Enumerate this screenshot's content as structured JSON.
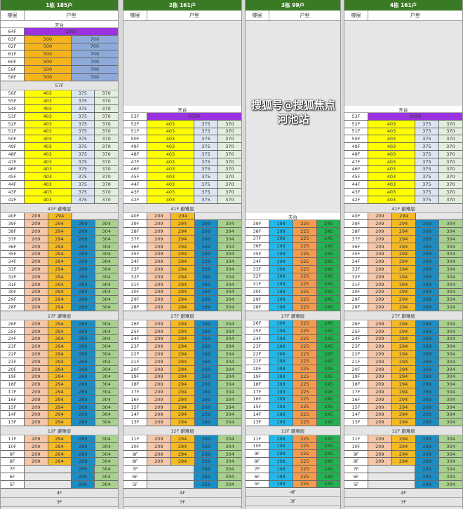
{
  "palette": {
    "purple": "#9a32e0",
    "orange500": "#f5b41c",
    "blue700": "#8eaadb",
    "yellow403": "#ffff00",
    "lightblue375": "#dce6f2",
    "lightgreen370": "#e3eedc",
    "peach209": "#f5c6a8",
    "gold294": "#f5b922",
    "blue269": "#1b8dc5",
    "green304": "#a9d18e",
    "cyan198": "#21b9ec",
    "orange225": "#f39c4d",
    "green245": "#22b24f",
    "empty": "#e6e6e6"
  },
  "panels": [
    {
      "title": "1栋 185户",
      "header_floor": "楼层",
      "header_type": "户型",
      "blank_top": false,
      "blocks": [
        {
          "sep": "天台",
          "roof": true
        },
        {
          "floors": [
            "64F"
          ],
          "cells": [
            {
              "v": "1050",
              "c": "purple",
              "span": 4
            }
          ]
        },
        {
          "floors": [
            "63F",
            "62F",
            "61F",
            "60F",
            "59F",
            "58F"
          ],
          "cells": [
            {
              "v": "500",
              "c": "orange500",
              "span": 2
            },
            {
              "v": "700",
              "c": "blue700",
              "span": 2
            }
          ]
        },
        {
          "sep": "57F"
        },
        {
          "floors": [
            "56F",
            "55F",
            "54F",
            "53F",
            "52F",
            "51F",
            "50F",
            "49F",
            "48F",
            "47F",
            "46F",
            "45F",
            "44F",
            "43F",
            "42F"
          ],
          "cells": [
            {
              "v": "403",
              "c": "yellow403",
              "span": 2
            },
            {
              "v": "375",
              "c": "lightblue375"
            },
            {
              "v": "370",
              "c": "lightgreen370"
            }
          ]
        },
        {
          "sep": "41F 避难层"
        },
        {
          "floors": [
            "40F"
          ],
          "cells": [
            {
              "v": "209",
              "c": "peach209"
            },
            {
              "v": "294",
              "c": "gold294"
            },
            {
              "v": "",
              "c": "empty",
              "span": 2
            }
          ]
        },
        {
          "floors": [
            "39F",
            "38F",
            "37F",
            "36F",
            "35F",
            "34F",
            "33F",
            "32F",
            "31F",
            "30F",
            "29F",
            "28F"
          ],
          "cells": [
            {
              "v": "209",
              "c": "peach209"
            },
            {
              "v": "294",
              "c": "gold294"
            },
            {
              "v": "269",
              "c": "blue269"
            },
            {
              "v": "304",
              "c": "green304"
            }
          ]
        },
        {
          "sep": "27F 避难层"
        },
        {
          "floors": [
            "26F",
            "25F",
            "24F",
            "23F",
            "22F",
            "21F",
            "20F",
            "19F",
            "18F",
            "17F",
            "16F",
            "15F",
            "14F",
            "13F"
          ],
          "cells": [
            {
              "v": "209",
              "c": "peach209"
            },
            {
              "v": "294",
              "c": "gold294"
            },
            {
              "v": "269",
              "c": "blue269"
            },
            {
              "v": "304",
              "c": "green304"
            }
          ]
        },
        {
          "sep": "12F 避难层"
        },
        {
          "floors": [
            "11F",
            "10F",
            "9F",
            "8F"
          ],
          "cells": [
            {
              "v": "209",
              "c": "peach209"
            },
            {
              "v": "294",
              "c": "gold294"
            },
            {
              "v": "269",
              "c": "blue269"
            },
            {
              "v": "304",
              "c": "green304"
            }
          ]
        },
        {
          "floors": [
            "7F",
            "6F",
            "5F"
          ],
          "cells": [
            {
              "v": "",
              "c": "empty",
              "span": 2
            },
            {
              "v": "269",
              "c": "blue269"
            },
            {
              "v": "304",
              "c": "green304"
            }
          ]
        },
        {
          "sep": "4F"
        },
        {
          "sep": "3F"
        }
      ]
    },
    {
      "title": "2栋 161户",
      "header_floor": "楼层",
      "header_type": "户型",
      "blank_top": true,
      "blocks": [
        {
          "sep": "天台",
          "roof": true
        },
        {
          "floors": [
            "53F"
          ],
          "cells": [
            {
              "v": "1050",
              "c": "purple",
              "span": 4
            }
          ]
        },
        {
          "floors": [
            "52F",
            "51F",
            "50F",
            "49F",
            "48F",
            "47F",
            "46F",
            "45F",
            "44F",
            "43F",
            "42F"
          ],
          "cells": [
            {
              "v": "403",
              "c": "yellow403",
              "span": 2
            },
            {
              "v": "375",
              "c": "lightblue375"
            },
            {
              "v": "370",
              "c": "lightgreen370"
            }
          ]
        },
        {
          "sep": "41F 避难层"
        },
        {
          "floors": [
            "40F"
          ],
          "cells": [
            {
              "v": "209",
              "c": "peach209"
            },
            {
              "v": "294",
              "c": "gold294"
            },
            {
              "v": "",
              "c": "empty",
              "span": 2
            }
          ]
        },
        {
          "floors": [
            "39F",
            "38F",
            "37F",
            "36F",
            "35F",
            "34F",
            "33F",
            "32F",
            "31F",
            "30F",
            "29F",
            "28F"
          ],
          "cells": [
            {
              "v": "209",
              "c": "peach209"
            },
            {
              "v": "294",
              "c": "gold294"
            },
            {
              "v": "269",
              "c": "blue269"
            },
            {
              "v": "304",
              "c": "green304"
            }
          ]
        },
        {
          "sep": "27F 避难层"
        },
        {
          "floors": [
            "26F",
            "25F",
            "24F",
            "23F",
            "22F",
            "21F",
            "20F",
            "19F",
            "18F",
            "17F",
            "16F",
            "15F",
            "14F",
            "13F"
          ],
          "cells": [
            {
              "v": "209",
              "c": "peach209"
            },
            {
              "v": "294",
              "c": "gold294"
            },
            {
              "v": "269",
              "c": "blue269"
            },
            {
              "v": "304",
              "c": "green304"
            }
          ]
        },
        {
          "sep": "12F 避难层"
        },
        {
          "floors": [
            "11F",
            "10F",
            "9F",
            "8F"
          ],
          "cells": [
            {
              "v": "209",
              "c": "peach209"
            },
            {
              "v": "294",
              "c": "gold294"
            },
            {
              "v": "269",
              "c": "blue269"
            },
            {
              "v": "304",
              "c": "green304"
            }
          ]
        },
        {
          "floors": [
            "7F",
            "6F",
            "5F"
          ],
          "cells": [
            {
              "v": "",
              "c": "empty",
              "span": 2
            },
            {
              "v": "269",
              "c": "blue269"
            },
            {
              "v": "304",
              "c": "green304"
            }
          ]
        },
        {
          "sep": "4F"
        },
        {
          "sep": "3F"
        }
      ]
    },
    {
      "title": "3栋 99户",
      "header_floor": "楼层",
      "header_type": "户型",
      "blank_top": true,
      "blocks": [
        {
          "sep": "天台",
          "roof": true
        },
        {
          "floors": [
            "39F",
            "38F",
            "37F",
            "36F",
            "35F",
            "34F",
            "33F",
            "32F",
            "31F",
            "30F",
            "29F",
            "28F"
          ],
          "cells": [
            {
              "v": "198",
              "c": "cyan198"
            },
            {
              "v": "225",
              "c": "orange225"
            },
            {
              "v": "245",
              "c": "green245"
            }
          ]
        },
        {
          "sep": "27F 避难层"
        },
        {
          "floors": [
            "26F",
            "25F",
            "24F",
            "23F",
            "22F",
            "21F",
            "20F",
            "19F",
            "18F",
            "17F",
            "16F",
            "15F",
            "14F",
            "13F"
          ],
          "cells": [
            {
              "v": "198",
              "c": "cyan198"
            },
            {
              "v": "225",
              "c": "orange225"
            },
            {
              "v": "245",
              "c": "green245"
            }
          ]
        },
        {
          "sep": "12F 避难层"
        },
        {
          "floors": [
            "11F",
            "10F",
            "9F",
            "8F",
            "7F",
            "6F",
            "5F"
          ],
          "cells": [
            {
              "v": "198",
              "c": "cyan198"
            },
            {
              "v": "225",
              "c": "orange225"
            },
            {
              "v": "245",
              "c": "green245"
            }
          ]
        },
        {
          "sep": "4F"
        },
        {
          "sep": "3F"
        }
      ]
    },
    {
      "title": "4栋 161户",
      "header_floor": "楼层",
      "header_type": "户型",
      "blank_top": true,
      "blocks": [
        {
          "sep": "天台",
          "roof": true
        },
        {
          "floors": [
            "53F"
          ],
          "cells": [
            {
              "v": "1050",
              "c": "purple",
              "span": 4
            }
          ]
        },
        {
          "floors": [
            "52F",
            "51F",
            "50F",
            "49F",
            "48F",
            "47F",
            "46F",
            "45F",
            "44F",
            "43F",
            "42F"
          ],
          "cells": [
            {
              "v": "403",
              "c": "yellow403",
              "span": 2
            },
            {
              "v": "375",
              "c": "lightblue375"
            },
            {
              "v": "370",
              "c": "lightgreen370"
            }
          ]
        },
        {
          "sep": "41F 避难层"
        },
        {
          "floors": [
            "40F"
          ],
          "cells": [
            {
              "v": "209",
              "c": "peach209"
            },
            {
              "v": "294",
              "c": "gold294"
            },
            {
              "v": "",
              "c": "empty",
              "span": 2
            }
          ]
        },
        {
          "floors": [
            "39F",
            "38F",
            "37F",
            "36F",
            "35F",
            "34F",
            "33F",
            "32F",
            "31F",
            "30F",
            "29F",
            "28F"
          ],
          "cells": [
            {
              "v": "209",
              "c": "peach209"
            },
            {
              "v": "294",
              "c": "gold294"
            },
            {
              "v": "269",
              "c": "blue269"
            },
            {
              "v": "304",
              "c": "green304"
            }
          ]
        },
        {
          "sep": "27F 避难层"
        },
        {
          "floors": [
            "26F",
            "25F",
            "24F",
            "23F",
            "22F",
            "21F",
            "20F",
            "19F",
            "18F",
            "17F",
            "16F",
            "15F",
            "14F",
            "13F"
          ],
          "cells": [
            {
              "v": "209",
              "c": "peach209"
            },
            {
              "v": "294",
              "c": "gold294"
            },
            {
              "v": "269",
              "c": "blue269"
            },
            {
              "v": "304",
              "c": "green304"
            }
          ]
        },
        {
          "sep": "12F 避难层"
        },
        {
          "floors": [
            "11F",
            "10F",
            "9F",
            "8F"
          ],
          "cells": [
            {
              "v": "209",
              "c": "peach209"
            },
            {
              "v": "294",
              "c": "gold294"
            },
            {
              "v": "269",
              "c": "blue269"
            },
            {
              "v": "304",
              "c": "green304"
            }
          ]
        },
        {
          "floors": [
            "7F",
            "6F",
            "5F"
          ],
          "cells": [
            {
              "v": "",
              "c": "empty",
              "span": 2
            },
            {
              "v": "269",
              "c": "blue269"
            },
            {
              "v": "304",
              "c": "green304"
            }
          ]
        },
        {
          "sep": "4F"
        },
        {
          "sep": "3F"
        }
      ]
    }
  ],
  "watermark": "搜狐号@搜狐焦点河池站"
}
